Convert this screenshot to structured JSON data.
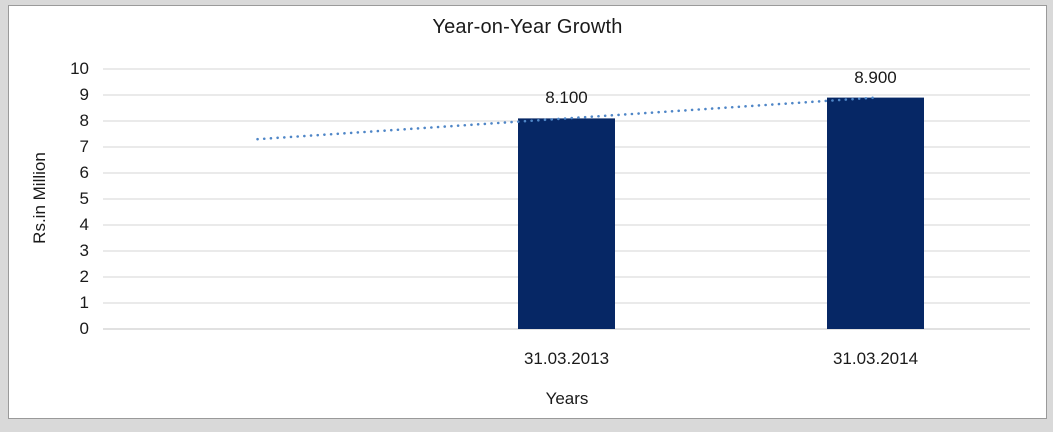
{
  "chart_data": {
    "type": "bar",
    "title": "Year-on-Year Growth",
    "xlabel": "Years",
    "ylabel": "Rs.in Million",
    "categories": [
      "31.03.2013",
      "31.03.2014"
    ],
    "values": [
      8.1,
      8.9
    ],
    "value_labels": [
      "8.100",
      "8.900"
    ],
    "ylim": [
      0,
      10
    ],
    "yticks": [
      0,
      1,
      2,
      3,
      4,
      5,
      6,
      7,
      8,
      9,
      10
    ],
    "grid": "horizontal",
    "legend_position": "none",
    "bar_color": "#062765",
    "trendline": {
      "style": "dotted",
      "color": "#4f86c7",
      "start_value": 7.3,
      "end_value": 8.9
    }
  },
  "colors": {
    "background": "#d9d9d9",
    "panel_background": "#ffffff",
    "panel_border": "#9a9a9a",
    "gridline": "#d6d6d6",
    "axis_line": "#c3c3c3",
    "text": "#1a1a1a"
  }
}
